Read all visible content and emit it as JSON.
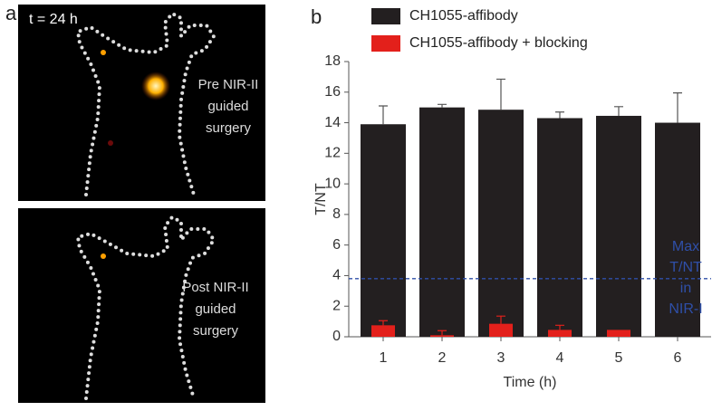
{
  "panel_a": {
    "label": "a",
    "time_label": "t = 24 h",
    "images": [
      {
        "caption": [
          "Pre NIR-II",
          "guided",
          "surgery"
        ]
      },
      {
        "caption": [
          "Post NIR-II",
          "guided",
          "surgery"
        ]
      }
    ]
  },
  "chart_data": {
    "type": "bar",
    "panel_label": "b",
    "categories": [
      "1",
      "2",
      "3",
      "4",
      "5",
      "6"
    ],
    "series": [
      {
        "name": "CH1055-affibody",
        "color": "#231f20",
        "values": [
          13.9,
          15.0,
          14.85,
          14.3,
          14.45,
          14.0
        ],
        "errors": [
          1.2,
          0.2,
          2.0,
          0.4,
          0.6,
          1.95
        ]
      },
      {
        "name": "CH1055-affibody + blocking",
        "color": "#e3201b",
        "values": [
          0.75,
          0.1,
          0.85,
          0.45,
          0.45,
          null
        ],
        "errors": [
          0.3,
          0.3,
          0.5,
          0.3,
          null,
          null
        ]
      }
    ],
    "ylim": [
      0,
      18
    ],
    "yticks": [
      0,
      2,
      4,
      6,
      8,
      10,
      12,
      14,
      16,
      18
    ],
    "xlabel": "Time (h)",
    "ylabel": "T/NT",
    "reference_line": {
      "value": 3.8,
      "color": "#2f4fa8",
      "label": [
        "Max",
        "T/NT",
        "in",
        "NIR-I"
      ]
    }
  }
}
